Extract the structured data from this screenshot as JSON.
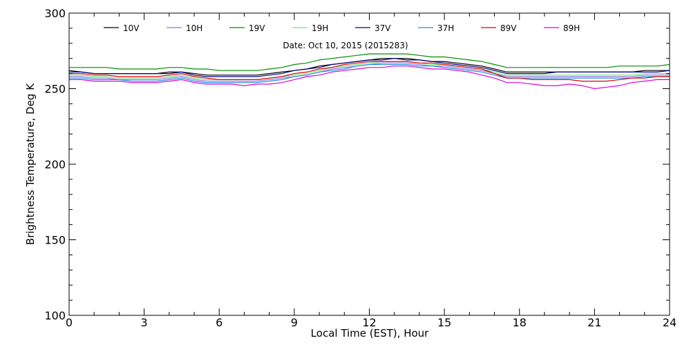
{
  "chart_data": {
    "type": "line",
    "title": "",
    "subtitle": "Date: Oct 10, 2015 (2015283)",
    "xlabel": "Local Time (EST), Hour",
    "ylabel": "Brightness Temperature, Deg K",
    "xlim": [
      0,
      24
    ],
    "ylim": [
      100,
      300
    ],
    "x_ticks": [
      "0",
      "3",
      "6",
      "9",
      "12",
      "15",
      "18",
      "21",
      "24"
    ],
    "y_ticks": [
      "100",
      "150",
      "200",
      "250",
      "300"
    ],
    "grid": false,
    "legend_position": "top",
    "x": [
      0,
      0.5,
      1,
      1.5,
      2,
      2.5,
      3,
      3.5,
      4,
      4.5,
      5,
      5.5,
      6,
      6.5,
      7,
      7.5,
      8,
      8.5,
      9,
      9.5,
      10,
      10.5,
      11,
      11.5,
      12,
      12.5,
      13,
      13.5,
      14,
      14.5,
      15,
      15.5,
      16,
      16.5,
      17,
      17.5,
      18,
      18.5,
      19,
      19.5,
      20,
      20.5,
      21,
      21.5,
      22,
      22.5,
      23,
      23.5,
      24
    ],
    "series": [
      {
        "name": "10V",
        "color": "#000000",
        "values": [
          262,
          261,
          260,
          260,
          260,
          260,
          260,
          260,
          261,
          261,
          260,
          259,
          259,
          259,
          259,
          259,
          260,
          261,
          262,
          263,
          265,
          266,
          267,
          268,
          269,
          270,
          270,
          270,
          269,
          268,
          268,
          267,
          266,
          265,
          263,
          261,
          261,
          261,
          261,
          261,
          261,
          261,
          261,
          261,
          261,
          261,
          262,
          262,
          262
        ]
      },
      {
        "name": "10H",
        "color": "#8c78dc",
        "values": [
          258,
          258,
          257,
          257,
          256,
          256,
          256,
          256,
          257,
          258,
          256,
          255,
          255,
          255,
          255,
          255,
          256,
          257,
          258,
          259,
          261,
          263,
          264,
          265,
          266,
          267,
          267,
          267,
          266,
          265,
          265,
          264,
          263,
          262,
          260,
          258,
          258,
          258,
          258,
          258,
          258,
          258,
          258,
          258,
          258,
          258,
          259,
          259,
          259
        ]
      },
      {
        "name": "19V",
        "color": "#008c00",
        "values": [
          264,
          264,
          264,
          264,
          263,
          263,
          263,
          263,
          264,
          264,
          263,
          263,
          262,
          262,
          262,
          262,
          263,
          264,
          266,
          267,
          269,
          270,
          271,
          272,
          273,
          273,
          273,
          273,
          272,
          271,
          271,
          270,
          269,
          268,
          266,
          264,
          264,
          264,
          264,
          264,
          264,
          264,
          264,
          264,
          265,
          265,
          265,
          265,
          266
        ]
      },
      {
        "name": "19H",
        "color": "#78e178",
        "values": [
          259,
          259,
          258,
          258,
          257,
          257,
          257,
          257,
          258,
          259,
          257,
          256,
          256,
          256,
          256,
          256,
          257,
          258,
          259,
          260,
          262,
          264,
          265,
          266,
          267,
          268,
          268,
          268,
          267,
          266,
          266,
          265,
          264,
          263,
          261,
          259,
          259,
          259,
          259,
          259,
          259,
          259,
          259,
          259,
          259,
          259,
          260,
          260,
          260
        ]
      },
      {
        "name": "37V",
        "color": "#00008c",
        "values": [
          261,
          261,
          260,
          260,
          260,
          260,
          260,
          260,
          260,
          261,
          259,
          258,
          258,
          258,
          258,
          258,
          259,
          260,
          262,
          263,
          264,
          266,
          267,
          268,
          269,
          269,
          270,
          269,
          269,
          268,
          267,
          266,
          265,
          264,
          262,
          260,
          260,
          260,
          260,
          261,
          261,
          261,
          261,
          261,
          261,
          261,
          261,
          261,
          262
        ]
      },
      {
        "name": "37H",
        "color": "#1e8ce6",
        "values": [
          257,
          257,
          256,
          256,
          256,
          255,
          255,
          255,
          256,
          257,
          255,
          254,
          254,
          254,
          254,
          254,
          255,
          256,
          258,
          259,
          261,
          262,
          263,
          265,
          266,
          266,
          266,
          266,
          265,
          265,
          264,
          263,
          262,
          261,
          259,
          257,
          257,
          257,
          257,
          257,
          257,
          257,
          257,
          257,
          257,
          257,
          258,
          258,
          258
        ]
      },
      {
        "name": "89V",
        "color": "#dc0000",
        "values": [
          260,
          260,
          259,
          259,
          258,
          258,
          258,
          258,
          259,
          260,
          258,
          257,
          256,
          256,
          256,
          256,
          257,
          258,
          260,
          261,
          263,
          264,
          266,
          267,
          268,
          268,
          268,
          268,
          267,
          267,
          266,
          265,
          264,
          263,
          260,
          257,
          257,
          256,
          256,
          256,
          256,
          255,
          255,
          255,
          256,
          257,
          257,
          258,
          258
        ]
      },
      {
        "name": "89H",
        "color": "#dc00dc",
        "values": [
          256,
          256,
          255,
          255,
          255,
          254,
          254,
          254,
          255,
          256,
          254,
          253,
          253,
          253,
          252,
          253,
          253,
          254,
          256,
          258,
          259,
          261,
          262,
          263,
          264,
          264,
          265,
          265,
          264,
          263,
          263,
          262,
          261,
          259,
          257,
          254,
          254,
          253,
          252,
          252,
          253,
          252,
          250,
          251,
          252,
          254,
          255,
          256,
          256
        ]
      }
    ]
  }
}
